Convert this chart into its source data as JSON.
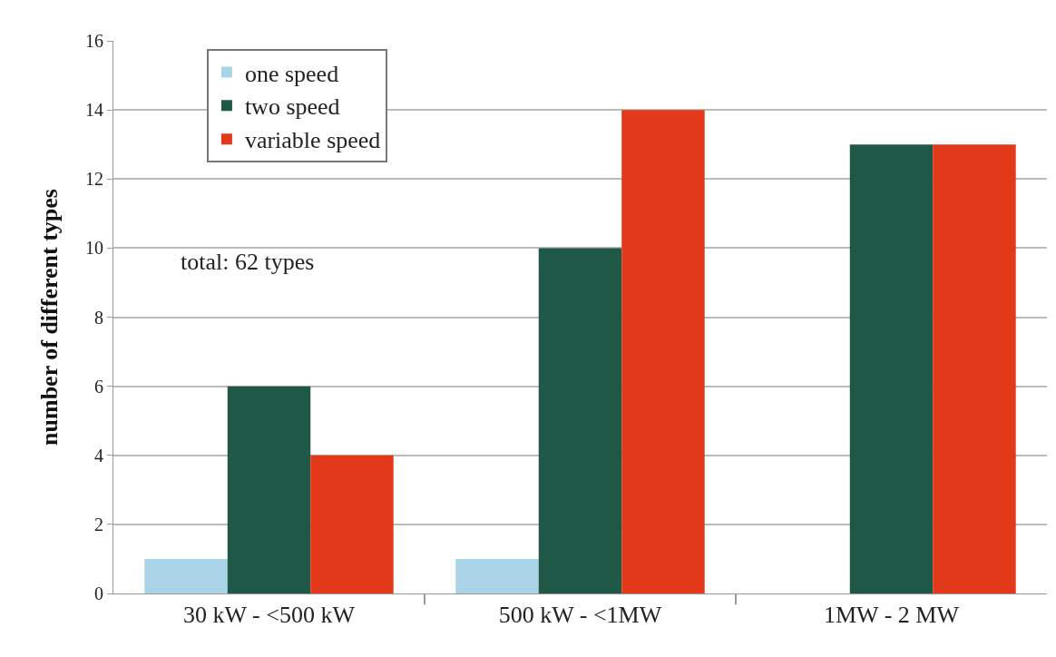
{
  "chart_data": {
    "type": "bar",
    "ylabel": "number of different types",
    "categories": [
      "30 kW - <500 kW",
      "500 kW - <1MW",
      "1MW - 2 MW"
    ],
    "series": [
      {
        "name": "one speed",
        "color": "#a9d3e6",
        "values": [
          1,
          1,
          null
        ]
      },
      {
        "name": "two speed",
        "color": "#1f5846",
        "values": [
          6,
          10,
          13
        ]
      },
      {
        "name": "variable speed",
        "color": "#e2391b",
        "values": [
          4,
          14,
          13
        ]
      }
    ],
    "ylim": [
      0,
      16
    ],
    "yticks": [
      0,
      2,
      4,
      6,
      8,
      10,
      12,
      14,
      16
    ],
    "grid": "y",
    "legend": "top left",
    "annotations": [
      "total: 62 types"
    ]
  }
}
